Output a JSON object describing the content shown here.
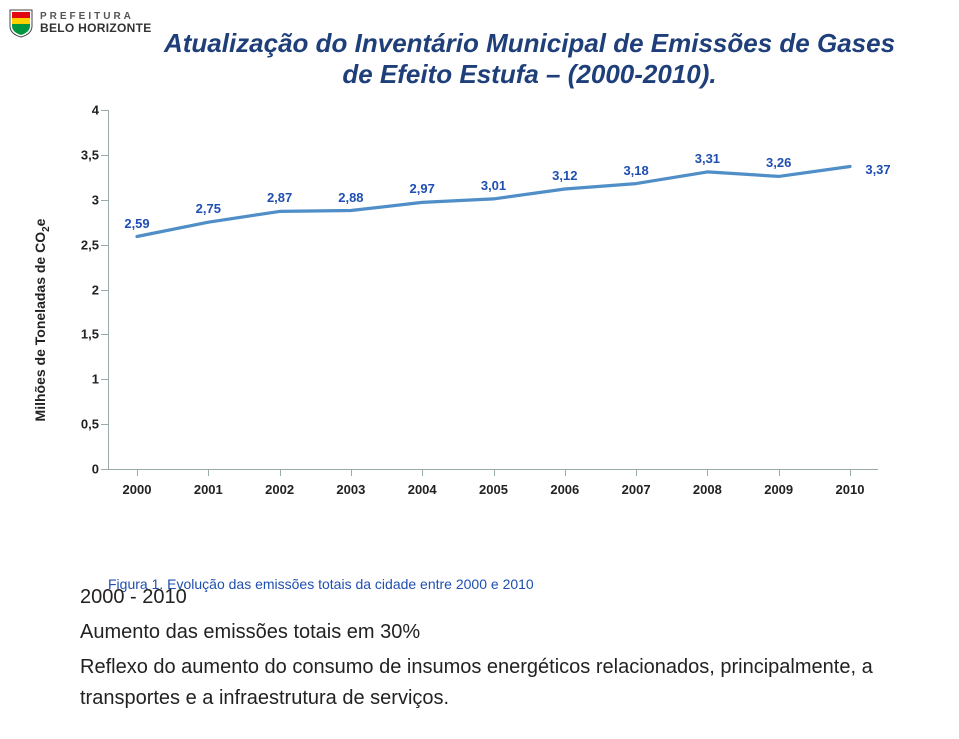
{
  "logo": {
    "line1": "PREFEITURA",
    "line2": "BELO HORIZONTE",
    "shield_colors": {
      "top": "#e30613",
      "mid": "#ffd100",
      "bottom": "#009640",
      "outline": "#444"
    }
  },
  "title": "Atualização do Inventário Municipal de Emissões de Gases de Efeito Estufa – (2000-2010).",
  "chart": {
    "type": "line",
    "ylabel_html": "Milhões de Toneladas de CO<sub>2</sub>e",
    "ylim": [
      0,
      4
    ],
    "ytick_step": 0.5,
    "ytick_labels": [
      "0",
      "0,5",
      "1",
      "1,5",
      "2",
      "2,5",
      "3",
      "3,5",
      "4"
    ],
    "categories": [
      "2000",
      "2001",
      "2002",
      "2003",
      "2004",
      "2005",
      "2006",
      "2007",
      "2008",
      "2009",
      "2010"
    ],
    "values": [
      2.59,
      2.75,
      2.87,
      2.88,
      2.97,
      3.01,
      3.12,
      3.18,
      3.31,
      3.26,
      3.37
    ],
    "value_labels": [
      "2,59",
      "2,75",
      "2,87",
      "2,88",
      "2,97",
      "3,01",
      "3,12",
      "3,18",
      "3,31",
      "3,26",
      "3,37"
    ],
    "line_color": "#4f8ec6",
    "line_width": 3.2,
    "label_color": "#1f4fb0",
    "label_fontsize": 13,
    "axis_color": "#99aaaa",
    "tick_fontsize": 13,
    "background_color": "#ffffff",
    "caption": "Figura 1. Evolução das emissões totais da cidade entre 2000 e 2010"
  },
  "body": {
    "p1": "2000 - 2010",
    "p2": "Aumento das emissões totais em 30%",
    "p3": "Reflexo do aumento do consumo de insumos energéticos relacionados, principalmente, a transportes e a infraestrutura de serviços."
  }
}
